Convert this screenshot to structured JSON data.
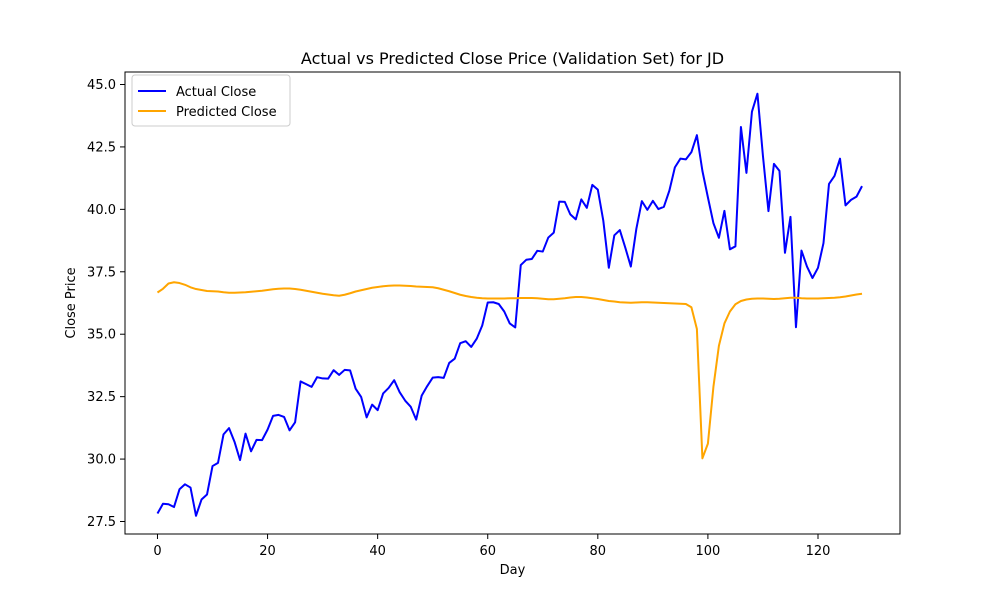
{
  "chart_data": {
    "type": "line",
    "title": "Actual vs Predicted Close Price (Validation Set) for JD",
    "xlabel": "Day",
    "ylabel": "Close Price",
    "xlim": [
      -5.9,
      134.9
    ],
    "ylim": [
      27.0,
      45.5
    ],
    "xticks": [
      0,
      20,
      40,
      60,
      80,
      100,
      120
    ],
    "xtick_labels": [
      "0",
      "20",
      "40",
      "60",
      "80",
      "100",
      "120"
    ],
    "yticks": [
      27.5,
      30.0,
      32.5,
      35.0,
      37.5,
      40.0,
      42.5,
      45.0
    ],
    "ytick_labels": [
      "27.5",
      "30.0",
      "32.5",
      "35.0",
      "37.5",
      "40.0",
      "42.5",
      "45.0"
    ],
    "grid": false,
    "legend_position": "top-left",
    "series": [
      {
        "name": "Actual Close",
        "color": "#0000ff",
        "values": [
          27.82,
          28.21,
          28.19,
          28.08,
          28.79,
          28.99,
          28.86,
          27.73,
          28.38,
          28.58,
          29.72,
          29.85,
          30.99,
          31.24,
          30.69,
          29.96,
          31.02,
          30.31,
          30.77,
          30.76,
          31.18,
          31.73,
          31.77,
          31.69,
          31.15,
          31.47,
          33.11,
          33.0,
          32.89,
          33.28,
          33.23,
          33.22,
          33.56,
          33.37,
          33.57,
          33.55,
          32.82,
          32.49,
          31.67,
          32.18,
          31.96,
          32.63,
          32.85,
          33.16,
          32.68,
          32.34,
          32.1,
          31.58,
          32.54,
          32.92,
          33.26,
          33.28,
          33.25,
          33.85,
          34.02,
          34.64,
          34.72,
          34.49,
          34.82,
          35.35,
          36.27,
          36.28,
          36.21,
          35.91,
          35.43,
          35.27,
          37.77,
          37.98,
          38.01,
          38.34,
          38.31,
          38.87,
          39.07,
          40.31,
          40.3,
          39.8,
          39.6,
          40.4,
          40.06,
          40.98,
          40.79,
          39.54,
          37.66,
          38.96,
          39.17,
          38.46,
          37.71,
          39.22,
          40.33,
          39.98,
          40.34,
          40.01,
          40.1,
          40.75,
          41.68,
          42.03,
          42.0,
          42.29,
          42.97,
          41.54,
          40.48,
          39.45,
          38.86,
          39.94,
          38.4,
          38.52,
          43.3,
          41.46,
          43.91,
          44.63,
          42.14,
          39.93,
          41.82,
          41.54,
          38.26,
          39.7,
          35.28,
          38.35,
          37.71,
          37.25,
          37.66,
          38.65,
          41.02,
          41.34,
          42.03,
          40.16,
          40.38,
          40.51,
          40.93
        ]
      },
      {
        "name": "Predicted Close",
        "color": "#ffa500",
        "values": [
          36.67,
          36.82,
          37.03,
          37.08,
          37.05,
          36.98,
          36.88,
          36.81,
          36.77,
          36.73,
          36.72,
          36.71,
          36.68,
          36.66,
          36.66,
          36.67,
          36.68,
          36.7,
          36.72,
          36.74,
          36.77,
          36.8,
          36.82,
          36.83,
          36.83,
          36.81,
          36.78,
          36.74,
          36.7,
          36.66,
          36.62,
          36.59,
          36.56,
          36.54,
          36.58,
          36.64,
          36.71,
          36.76,
          36.81,
          36.86,
          36.89,
          36.92,
          36.94,
          36.95,
          36.95,
          36.94,
          36.93,
          36.91,
          36.9,
          36.89,
          36.88,
          36.84,
          36.78,
          36.72,
          36.65,
          36.58,
          36.53,
          36.49,
          36.46,
          36.44,
          36.43,
          36.43,
          36.43,
          36.43,
          36.44,
          36.44,
          36.45,
          36.45,
          36.45,
          36.44,
          36.42,
          36.4,
          36.4,
          36.42,
          36.44,
          36.47,
          36.49,
          36.49,
          36.47,
          36.44,
          36.41,
          36.37,
          36.33,
          36.31,
          36.28,
          36.27,
          36.26,
          36.27,
          36.28,
          36.28,
          36.27,
          36.26,
          36.25,
          36.24,
          36.23,
          36.22,
          36.21,
          36.08,
          35.21,
          30.03,
          30.62,
          32.89,
          34.54,
          35.43,
          35.91,
          36.2,
          36.33,
          36.39,
          36.42,
          36.43,
          36.43,
          36.42,
          36.41,
          36.42,
          36.44,
          36.46,
          36.46,
          36.44,
          36.43,
          36.43,
          36.43,
          36.44,
          36.45,
          36.46,
          36.48,
          36.51,
          36.55,
          36.59,
          36.62
        ]
      }
    ]
  }
}
